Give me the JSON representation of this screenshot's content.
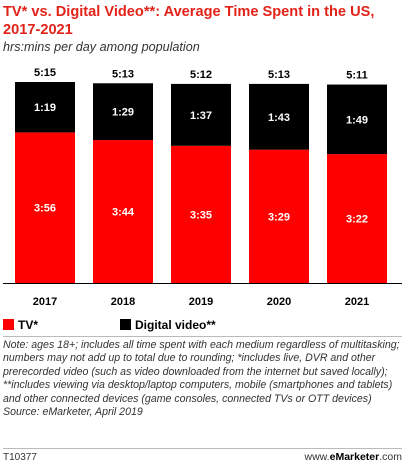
{
  "header": {
    "title": "TV* vs. Digital Video**: Average Time Spent in the US, 2017-2021",
    "subtitle": "hrs:mins per day among population"
  },
  "chart_data": {
    "type": "bar",
    "stacked": true,
    "categories": [
      "2017",
      "2018",
      "2019",
      "2020",
      "2021"
    ],
    "totals": [
      "5:15",
      "5:13",
      "5:12",
      "5:13",
      "5:11"
    ],
    "ylim": [
      0,
      315
    ],
    "series": [
      {
        "name": "TV*",
        "color": "#ff0000",
        "values": [
          236,
          224,
          215,
          209,
          202
        ],
        "labels": [
          "3:56",
          "3:44",
          "3:35",
          "3:29",
          "3:22"
        ]
      },
      {
        "name": "Digital video**",
        "color": "#000000",
        "values": [
          79,
          89,
          97,
          103,
          109
        ],
        "labels": [
          "1:19",
          "1:29",
          "1:37",
          "1:43",
          "1:49"
        ]
      }
    ],
    "legend": "bottom-left"
  },
  "note": "Note: ages 18+; includes all time spent with each medium regardless of multitasking; numbers may not add up to total due to rounding; *includes live, DVR and other prerecorded video (such as video downloaded from the internet but saved locally); **includes viewing via desktop/laptop computers, mobile (smartphones and tablets) and other connected devices (game consoles, connected TVs or OTT devices)",
  "source": "Source: eMarketer, April 2019",
  "footer": {
    "id": "T10377",
    "site_prefix": "www.",
    "site_brand": "eMarketer",
    "site_suffix": ".com"
  }
}
